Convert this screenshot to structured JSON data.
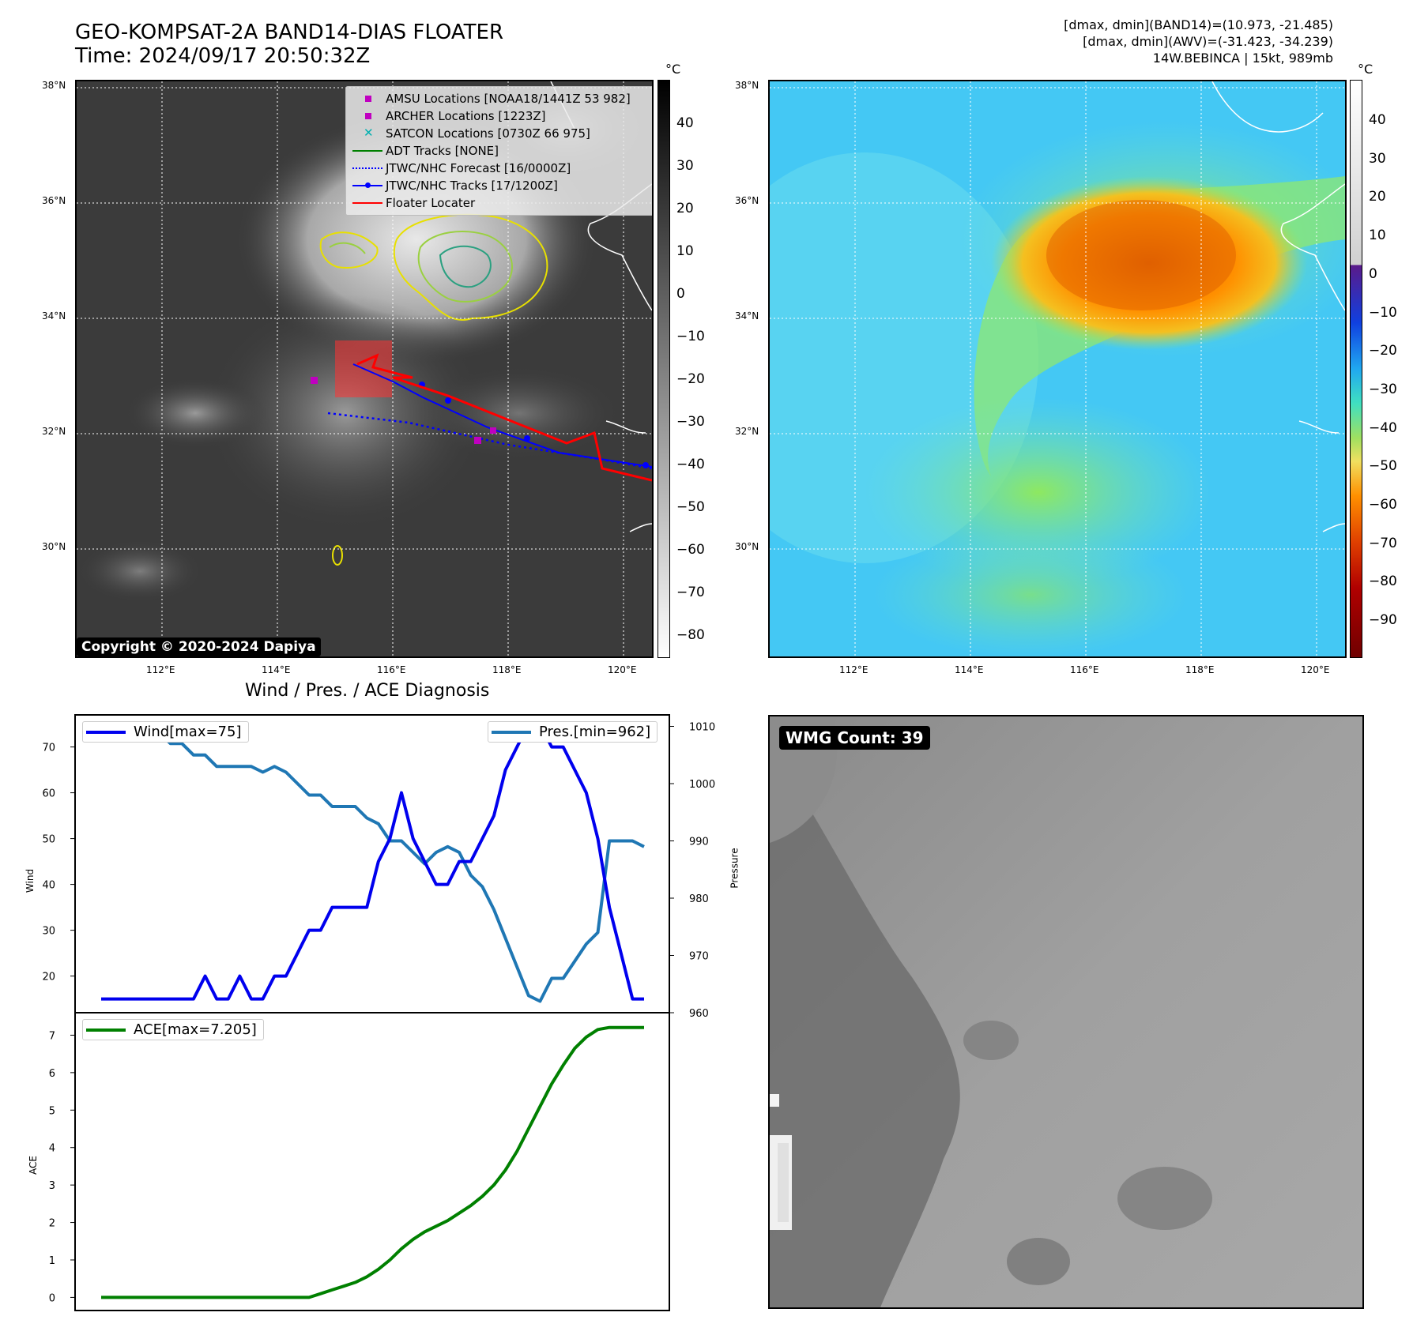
{
  "header": {
    "title_line1": "GEO-KOMPSAT-2A BAND14-DIAS FLOATER",
    "title_line2": "Time: 2024/09/17 20:50:32Z",
    "info_line1": "[dmax, dmin](BAND14)=(10.973, -21.485)",
    "info_line2": "[dmax, dmin](AWV)=(-31.423, -34.239)",
    "info_line3": "14W.BEBINCA | 15kt, 989mb"
  },
  "map": {
    "lat_labels": [
      "38°N",
      "36°N",
      "34°N",
      "32°N",
      "30°N"
    ],
    "lon_labels": [
      "112°E",
      "114°E",
      "116°E",
      "118°E",
      "120°E"
    ],
    "copyright": "Copyright © 2020-2024 Dapiya"
  },
  "colorbar_left": {
    "unit": "°C",
    "ticks": [
      "40",
      "30",
      "20",
      "10",
      "0",
      "−10",
      "−20",
      "−30",
      "−40",
      "−50",
      "−60",
      "−70",
      "−80"
    ]
  },
  "colorbar_right": {
    "unit": "°C",
    "ticks": [
      "40",
      "30",
      "20",
      "10",
      "0",
      "−10",
      "−20",
      "−30",
      "−40",
      "−50",
      "−60",
      "−70",
      "−80",
      "−90"
    ]
  },
  "legend": {
    "items": [
      {
        "label": "AMSU Locations [NOAA18/1441Z 53 982]",
        "color": "#c000c0",
        "kind": "square"
      },
      {
        "label": "ARCHER Locations [1223Z]",
        "color": "#c000c0",
        "kind": "square"
      },
      {
        "label": "SATCON Locations [0730Z 66 975]",
        "color": "#00b0b0",
        "kind": "x"
      },
      {
        "label": "ADT Tracks [NONE]",
        "color": "#008000",
        "kind": "line"
      },
      {
        "label": "JTWC/NHC Forecast [16/0000Z]",
        "color": "#0000ff",
        "kind": "dotted"
      },
      {
        "label": "JTWC/NHC Tracks [17/1200Z]",
        "color": "#0000ff",
        "kind": "line-dot"
      },
      {
        "label": "Floater Locater",
        "color": "#ff0000",
        "kind": "line"
      }
    ]
  },
  "diag": {
    "title": "Wind / Pres. / ACE Diagnosis",
    "wind_legend": "Wind[max=75]",
    "pres_legend": "Pres.[min=962]",
    "ace_legend": "ACE[max=7.205]",
    "wind_axis": "Wind",
    "pres_axis": "Pressure",
    "ace_axis": "ACE"
  },
  "wmg": {
    "label": "WMG Count: 39"
  },
  "chart_data": [
    {
      "type": "line",
      "title": "Wind / Pres. / ACE Diagnosis",
      "ylabel": "Wind",
      "ylim": [
        12,
        77
      ],
      "yticks": [
        20,
        30,
        40,
        50,
        60,
        70
      ],
      "series": [
        {
          "name": "Wind[max=75]",
          "color": "#0000ee",
          "values": [
            15,
            15,
            15,
            15,
            15,
            15,
            15,
            15,
            15,
            20,
            15,
            15,
            20,
            15,
            15,
            20,
            20,
            25,
            30,
            30,
            35,
            35,
            35,
            35,
            45,
            50,
            60,
            50,
            45,
            40,
            40,
            45,
            45,
            50,
            55,
            65,
            70,
            75,
            75,
            70,
            70,
            65,
            60,
            50,
            35,
            25,
            15,
            15
          ]
        }
      ]
    },
    {
      "type": "line",
      "ylabel": "Pressure",
      "ylim": [
        960,
        1012
      ],
      "yticks": [
        960,
        970,
        980,
        990,
        1000,
        1010
      ],
      "series": [
        {
          "name": "Pres.[min=962]",
          "color": "#1f77b4",
          "values": [
            1010,
            1008,
            1008,
            1008,
            1009,
            1009,
            1007,
            1007,
            1005,
            1005,
            1003,
            1003,
            1003,
            1003,
            1002,
            1003,
            1002,
            1000,
            998,
            998,
            996,
            996,
            996,
            994,
            993,
            990,
            990,
            988,
            986,
            988,
            989,
            988,
            984,
            982,
            978,
            973,
            968,
            963,
            962,
            966,
            966,
            969,
            972,
            974,
            990,
            990,
            990,
            989
          ]
        }
      ]
    },
    {
      "type": "line",
      "ylabel": "ACE",
      "ylim": [
        -0.35,
        7.6
      ],
      "yticks": [
        0,
        1,
        2,
        3,
        4,
        5,
        6,
        7
      ],
      "series": [
        {
          "name": "ACE[max=7.205]",
          "color": "#008000",
          "values": [
            0,
            0,
            0,
            0,
            0,
            0,
            0,
            0,
            0,
            0,
            0,
            0,
            0,
            0,
            0,
            0,
            0,
            0,
            0,
            0.1,
            0.2,
            0.3,
            0.4,
            0.55,
            0.75,
            1.0,
            1.3,
            1.55,
            1.75,
            1.9,
            2.05,
            2.25,
            2.45,
            2.7,
            3.0,
            3.4,
            3.9,
            4.5,
            5.1,
            5.7,
            6.2,
            6.65,
            6.95,
            7.15,
            7.205,
            7.205,
            7.205,
            7.205
          ]
        }
      ]
    }
  ]
}
